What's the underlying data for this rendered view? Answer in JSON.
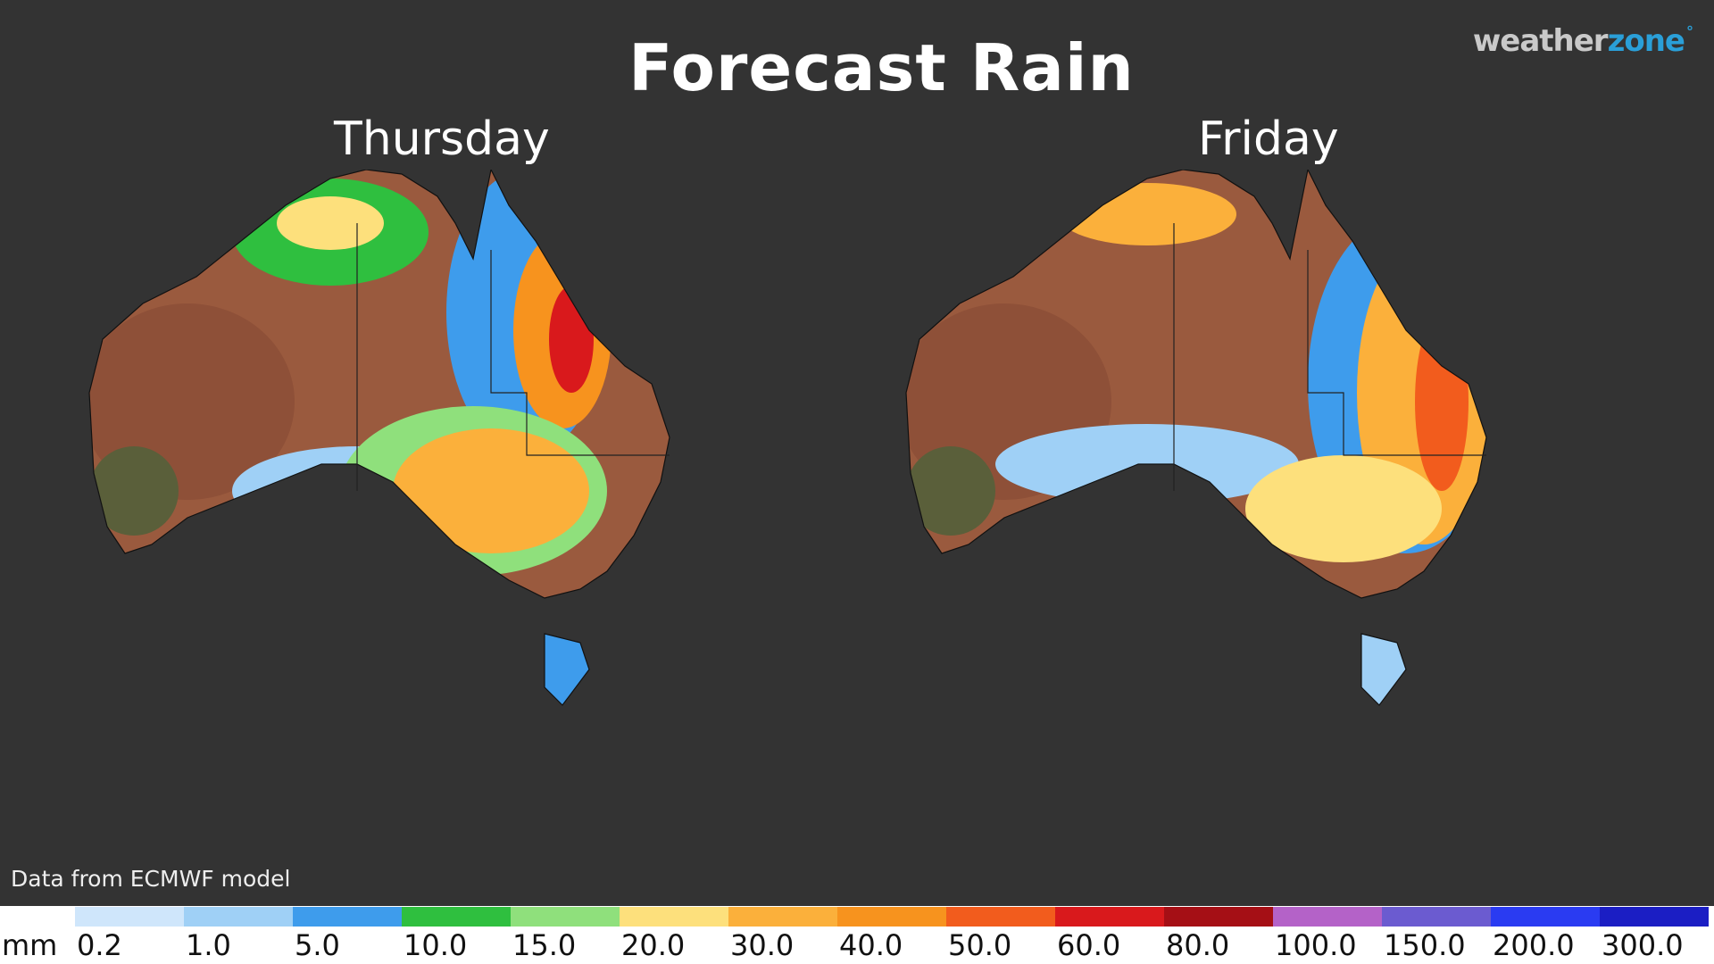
{
  "header": {
    "title": "Forecast Rain"
  },
  "logo": {
    "text_main": "weather",
    "text_accent": "zone",
    "mark": "°"
  },
  "panels": [
    {
      "label": "Thursday"
    },
    {
      "label": "Friday"
    }
  ],
  "credit": "Data from ECMWF model",
  "legend": {
    "unit": "mm",
    "bins": [
      {
        "label": "0.2",
        "color": "#cfe6fb"
      },
      {
        "label": "1.0",
        "color": "#9fd0f6"
      },
      {
        "label": "5.0",
        "color": "#3e9cec"
      },
      {
        "label": "10.0",
        "color": "#2fbf3f"
      },
      {
        "label": "15.0",
        "color": "#8fe07c"
      },
      {
        "label": "20.0",
        "color": "#fde07c"
      },
      {
        "label": "30.0",
        "color": "#fbb03b"
      },
      {
        "label": "40.0",
        "color": "#f7931e"
      },
      {
        "label": "50.0",
        "color": "#f25c1d"
      },
      {
        "label": "60.0",
        "color": "#d9191c"
      },
      {
        "label": "80.0",
        "color": "#a50f15"
      },
      {
        "label": "100.0",
        "color": "#b462c8"
      },
      {
        "label": "150.0",
        "color": "#6b5bd0"
      },
      {
        "label": "200.0",
        "color": "#2a3bf2"
      },
      {
        "label": "300.0",
        "color": "#1b1ec4"
      }
    ]
  }
}
